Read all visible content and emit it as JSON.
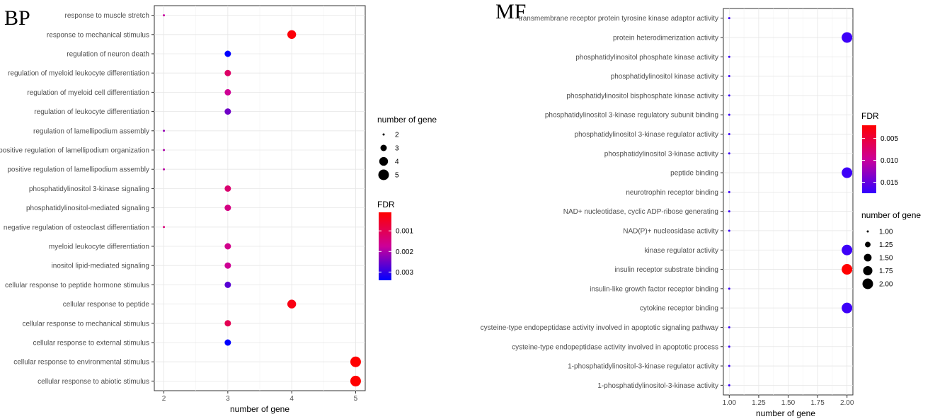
{
  "chart_data": [
    {
      "type": "scatter",
      "panel_label": "BP",
      "xlabel": "number of gene",
      "xlim": [
        1.85,
        5.15
      ],
      "xticks": [
        "2",
        "3",
        "4",
        "5"
      ],
      "xtick_values": [
        2,
        3,
        4,
        5
      ],
      "grid": true,
      "categories": [
        "response to muscle stretch",
        "response to mechanical stimulus",
        "regulation of neuron death",
        "regulation of myeloid leukocyte differentiation",
        "regulation of myeloid cell differentiation",
        "regulation of leukocyte differentiation",
        "regulation of lamellipodium assembly",
        "positive regulation of lamellipodium organization",
        "positive regulation of lamellipodium assembly",
        "phosphatidylinositol 3-kinase signaling",
        "phosphatidylinositol-mediated signaling",
        "negative regulation of osteoclast differentiation",
        "myeloid leukocyte differentiation",
        "inositol lipid-mediated signaling",
        "cellular response to peptide hormone stimulus",
        "cellular response to peptide",
        "cellular response to mechanical stimulus",
        "cellular response to external stimulus",
        "cellular response to environmental stimulus",
        "cellular response to abiotic stimulus"
      ],
      "x": [
        2,
        4,
        3,
        3,
        3,
        3,
        2,
        2,
        2,
        3,
        3,
        2,
        3,
        3,
        3,
        4,
        3,
        3,
        5,
        5
      ],
      "size": [
        2,
        4,
        3,
        3,
        3,
        3,
        2,
        2,
        2,
        3,
        3,
        2,
        3,
        3,
        3,
        4,
        3,
        3,
        5,
        5
      ],
      "fdr": [
        0.0018,
        0.0002,
        0.0034,
        0.0012,
        0.0017,
        0.0025,
        0.0022,
        0.002,
        0.0019,
        0.0013,
        0.0015,
        0.0014,
        0.0016,
        0.0017,
        0.0027,
        0.0003,
        0.001,
        0.0034,
        0.0001,
        0.0001
      ],
      "size_legend": {
        "title": "number of gene",
        "labels": [
          "2",
          "3",
          "4",
          "5"
        ],
        "values": [
          2,
          3,
          4,
          5
        ]
      },
      "color_legend": {
        "title": "FDR",
        "labels": [
          "0.001",
          "0.002",
          "0.003"
        ],
        "values": [
          0.001,
          0.002,
          0.003
        ],
        "range": [
          0.0001,
          0.0034
        ],
        "low_color": "#ff0000",
        "mid_color": "#cc0099",
        "high_color": "#0000ff"
      }
    },
    {
      "type": "scatter",
      "panel_label": "MF",
      "xlabel": "number of gene",
      "xlim": [
        0.95,
        2.05
      ],
      "xticks": [
        "1.00",
        "1.25",
        "1.50",
        "1.75",
        "2.00"
      ],
      "xtick_values": [
        1.0,
        1.25,
        1.5,
        1.75,
        2.0
      ],
      "grid": true,
      "categories": [
        "transmembrane receptor protein tyrosine kinase adaptor activity",
        "protein heterodimerization activity",
        "phosphatidylinositol phosphate kinase activity",
        "phosphatidylinositol kinase activity",
        "phosphatidylinositol bisphosphate kinase activity",
        "phosphatidylinositol 3-kinase regulatory subunit binding",
        "phosphatidylinositol 3-kinase regulator activity",
        "phosphatidylinositol 3-kinase activity",
        "peptide binding",
        "neurotrophin receptor binding",
        "NAD+ nucleotidase, cyclic ADP-ribose generating",
        "NAD(P)+ nucleosidase activity",
        "kinase regulator activity",
        "insulin receptor substrate binding",
        "insulin-like growth factor receptor binding",
        "cytokine receptor binding",
        "cysteine-type endopeptidase activity involved in apoptotic signaling pathway",
        "cysteine-type endopeptidase activity involved in apoptotic process",
        "1-phosphatidylinositol-3-kinase regulator activity",
        "1-phosphatidylinositol-3-kinase activity"
      ],
      "x": [
        1,
        2,
        1,
        1,
        1,
        1,
        1,
        1,
        2,
        1,
        1,
        1,
        2,
        2,
        1,
        2,
        1,
        1,
        1,
        1
      ],
      "size": [
        1,
        2,
        1,
        1,
        1,
        1,
        1,
        1,
        2,
        1,
        1,
        1,
        2,
        2,
        1,
        2,
        1,
        1,
        1,
        1
      ],
      "fdr": [
        0.017,
        0.017,
        0.017,
        0.017,
        0.017,
        0.017,
        0.017,
        0.017,
        0.017,
        0.017,
        0.017,
        0.017,
        0.017,
        0.002,
        0.017,
        0.017,
        0.017,
        0.017,
        0.017,
        0.017
      ],
      "size_legend": {
        "title": "number of gene",
        "labels": [
          "1.00",
          "1.25",
          "1.50",
          "1.75",
          "2.00"
        ],
        "values": [
          1.0,
          1.25,
          1.5,
          1.75,
          2.0
        ]
      },
      "color_legend": {
        "title": "FDR",
        "labels": [
          "0.005",
          "0.010",
          "0.015"
        ],
        "values": [
          0.005,
          0.01,
          0.015
        ],
        "range": [
          0.002,
          0.0175
        ],
        "low_color": "#ff0000",
        "mid_color": "#cc0099",
        "high_color": "#3300ff"
      }
    }
  ]
}
